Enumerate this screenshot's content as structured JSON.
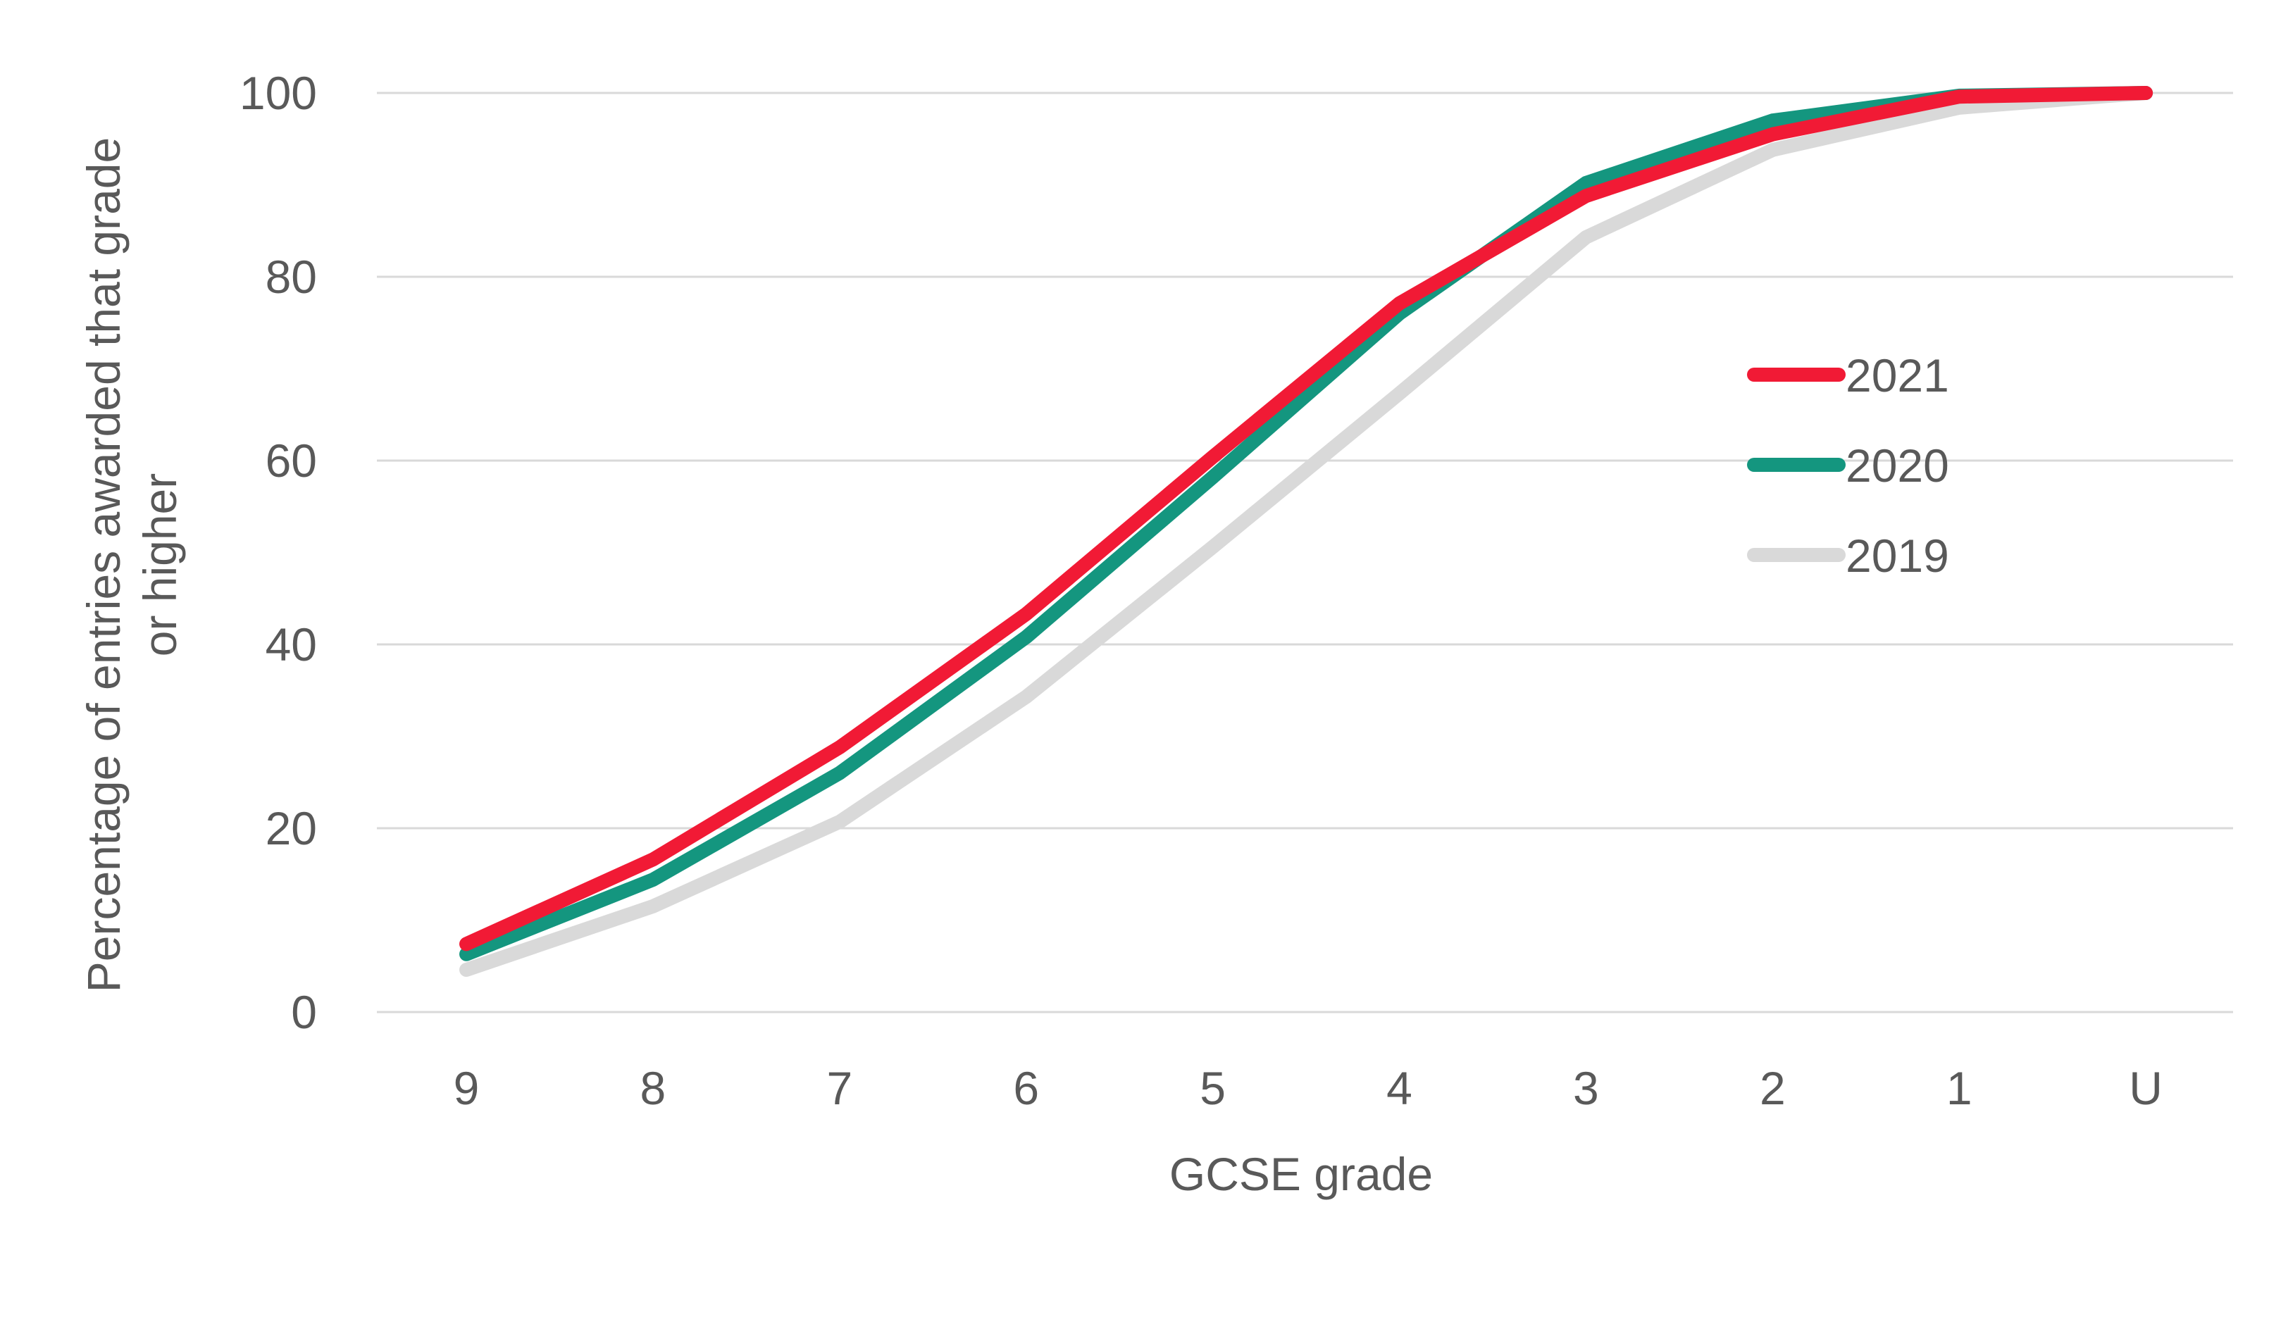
{
  "chart_data": {
    "type": "line",
    "title": "",
    "xlabel": "GCSE grade",
    "ylabel_lines": [
      "Percentage of entries awarded that grade",
      "or higher"
    ],
    "categories": [
      "9",
      "8",
      "7",
      "6",
      "5",
      "4",
      "3",
      "2",
      "1",
      "U"
    ],
    "ylim": [
      0,
      100
    ],
    "yticks": [
      0,
      20,
      40,
      60,
      80,
      100
    ],
    "grid": "horizontal",
    "legend": "right",
    "series": [
      {
        "name": "2021",
        "color": "#f11a35",
        "values": [
          7.4,
          16.6,
          28.8,
          43.3,
          60.4,
          77.1,
          88.8,
          95.5,
          99.6,
          100
        ]
      },
      {
        "name": "2020",
        "color": "#14967f",
        "values": [
          6.3,
          14.4,
          26.0,
          40.8,
          58.2,
          76.0,
          90.2,
          97.0,
          99.7,
          100
        ]
      },
      {
        "name": "2019",
        "color": "#d9d9d9",
        "values": [
          4.6,
          11.5,
          20.7,
          34.3,
          50.6,
          67.3,
          84.3,
          93.8,
          98.4,
          100
        ]
      }
    ]
  }
}
